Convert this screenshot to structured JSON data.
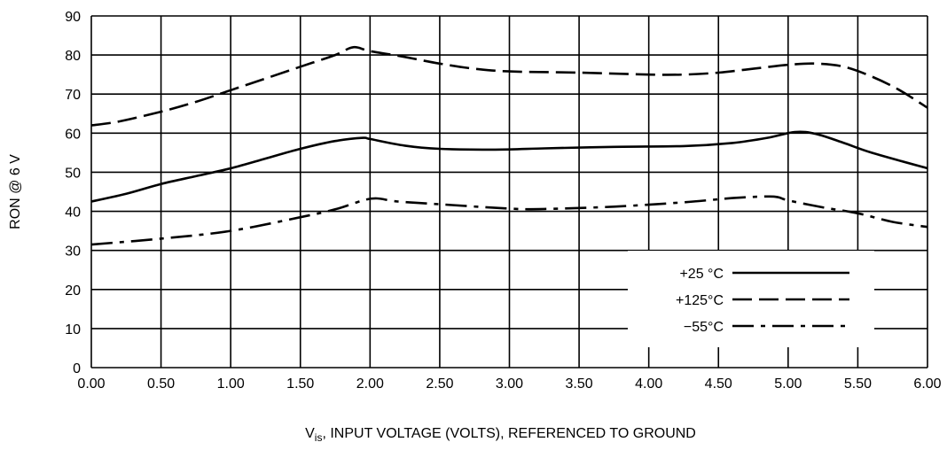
{
  "chart_data": {
    "type": "line",
    "title": "",
    "ylabel": "RON @ 6 V",
    "xlabel": {
      "main": "V",
      "sub": "is",
      "rest": ", INPUT VOLTAGE (VOLTS), REFERENCED TO GROUND"
    },
    "xlim": [
      0,
      6
    ],
    "ylim": [
      0,
      90
    ],
    "x_ticks": [
      "0.00",
      "0.50",
      "1.00",
      "1.50",
      "2.00",
      "2.50",
      "3.00",
      "3.50",
      "4.00",
      "4.50",
      "5.00",
      "5.50",
      "6.00"
    ],
    "y_ticks": [
      "0",
      "10",
      "20",
      "30",
      "40",
      "50",
      "60",
      "70",
      "80",
      "90"
    ],
    "grid": true,
    "legend_position": "bottom-right",
    "series": [
      {
        "name": "+25 °C",
        "style": "solid",
        "points": [
          [
            0,
            42.5
          ],
          [
            0.25,
            44.5
          ],
          [
            0.5,
            47
          ],
          [
            0.75,
            49
          ],
          [
            1.0,
            51
          ],
          [
            1.25,
            53.5
          ],
          [
            1.5,
            56
          ],
          [
            1.75,
            58
          ],
          [
            1.95,
            58.8
          ],
          [
            2.0,
            58.5
          ],
          [
            2.25,
            56.8
          ],
          [
            2.5,
            56.0
          ],
          [
            2.9,
            55.8
          ],
          [
            3.25,
            56.1
          ],
          [
            3.75,
            56.5
          ],
          [
            4.25,
            56.7
          ],
          [
            4.6,
            57.5
          ],
          [
            4.85,
            58.8
          ],
          [
            5.05,
            60.3
          ],
          [
            5.2,
            59.8
          ],
          [
            5.4,
            57.5
          ],
          [
            5.6,
            55.0
          ],
          [
            6.0,
            51.0
          ]
        ]
      },
      {
        "name": "+125°C",
        "style": "dashed",
        "points": [
          [
            0,
            62.0
          ],
          [
            0.2,
            63.0
          ],
          [
            0.5,
            65.5
          ],
          [
            0.75,
            68.0
          ],
          [
            1.0,
            71.0
          ],
          [
            1.25,
            74.0
          ],
          [
            1.5,
            77.0
          ],
          [
            1.75,
            80.0
          ],
          [
            1.88,
            82.0
          ],
          [
            2.0,
            81.0
          ],
          [
            2.25,
            79.5
          ],
          [
            2.5,
            77.8
          ],
          [
            2.75,
            76.5
          ],
          [
            3.0,
            75.8
          ],
          [
            3.5,
            75.5
          ],
          [
            4.0,
            75.0
          ],
          [
            4.25,
            75.0
          ],
          [
            4.5,
            75.5
          ],
          [
            4.75,
            76.5
          ],
          [
            5.0,
            77.5
          ],
          [
            5.2,
            77.8
          ],
          [
            5.4,
            77.0
          ],
          [
            5.6,
            74.5
          ],
          [
            5.8,
            71.0
          ],
          [
            6.0,
            66.5
          ]
        ]
      },
      {
        "name": "−55°C",
        "style": "dashdot",
        "points": [
          [
            0,
            31.5
          ],
          [
            0.5,
            33.0
          ],
          [
            1.0,
            35.0
          ],
          [
            1.5,
            38.5
          ],
          [
            1.75,
            40.5
          ],
          [
            1.95,
            42.8
          ],
          [
            2.05,
            43.3
          ],
          [
            2.2,
            42.5
          ],
          [
            2.5,
            41.8
          ],
          [
            3.0,
            40.7
          ],
          [
            3.25,
            40.6
          ],
          [
            3.75,
            41.2
          ],
          [
            4.25,
            42.3
          ],
          [
            4.6,
            43.4
          ],
          [
            4.85,
            43.8
          ],
          [
            4.93,
            43.6
          ],
          [
            5.0,
            42.8
          ],
          [
            5.25,
            41.0
          ],
          [
            5.5,
            39.5
          ],
          [
            5.75,
            37.3
          ],
          [
            6.0,
            36.0
          ]
        ]
      }
    ]
  }
}
